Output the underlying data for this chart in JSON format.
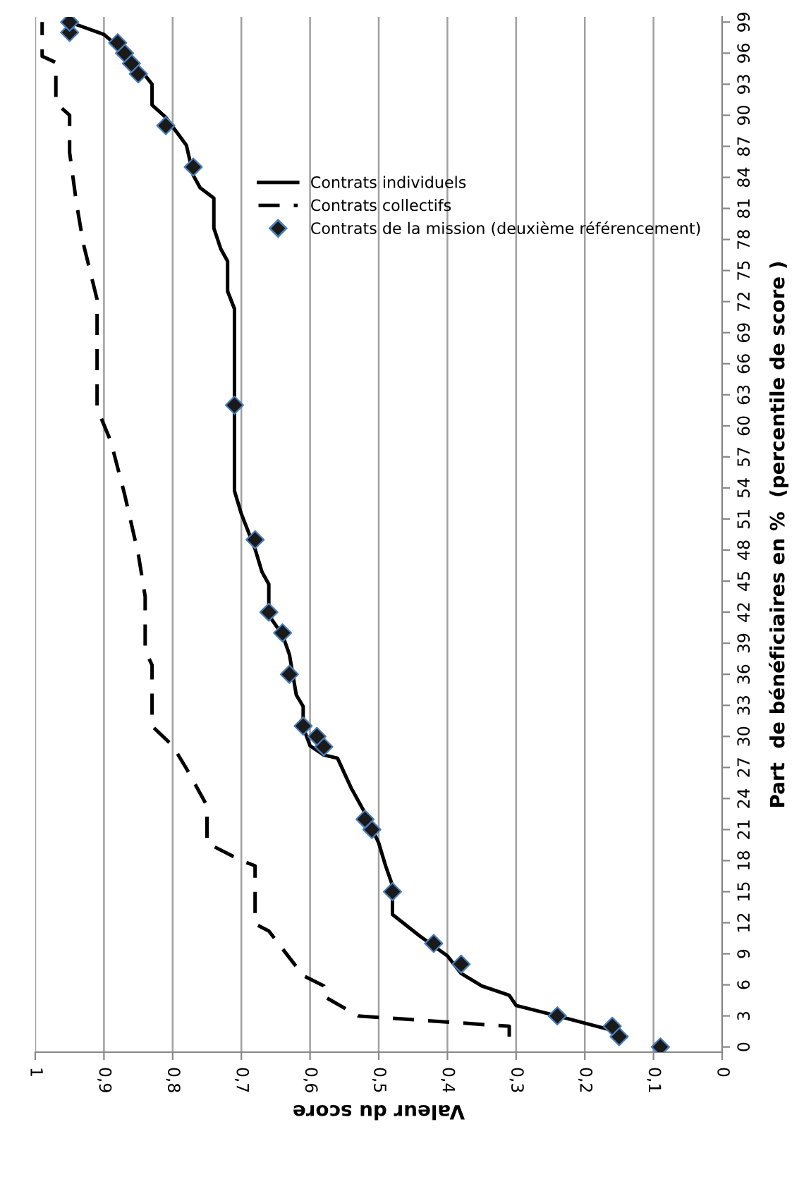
{
  "chart_data": {
    "type": "line",
    "xlabel": "Valeur du score",
    "ylabel": "Part  de bénéficiaires en %  (percentile de score )",
    "ylim": [
      -0.5,
      99.5
    ],
    "yticks": [
      0,
      3,
      6,
      9,
      12,
      15,
      18,
      21,
      24,
      27,
      30,
      33,
      36,
      39,
      42,
      45,
      48,
      51,
      54,
      57,
      60,
      63,
      66,
      69,
      72,
      75,
      78,
      81,
      84,
      87,
      90,
      93,
      96,
      99
    ],
    "xlim": [
      1,
      0
    ],
    "xticks": [
      {
        "value": 0,
        "label": "0"
      },
      {
        "value": 0.1,
        "label": "0,1"
      },
      {
        "value": 0.2,
        "label": "0,2"
      },
      {
        "value": 0.3,
        "label": "0,3"
      },
      {
        "value": 0.4,
        "label": "0,4"
      },
      {
        "value": 0.5,
        "label": "0,5"
      },
      {
        "value": 0.6,
        "label": "0,6"
      },
      {
        "value": 0.7,
        "label": "0,7"
      },
      {
        "value": 0.8,
        "label": "0,8"
      },
      {
        "value": 0.9,
        "label": "0,9"
      },
      {
        "value": 1,
        "label": "1"
      }
    ],
    "grid": "x",
    "legend": "top right",
    "series": [
      {
        "name": "Contrats individuels",
        "line_style": "solid",
        "color": "#000000",
        "values": [
          1,
          1.6,
          3,
          4,
          5,
          5.9,
          7.1,
          8.8,
          10.7,
          12.8,
          15.6,
          17.5,
          19.7,
          22.6,
          25,
          27.9,
          28.2,
          29.1,
          30.9,
          32.9,
          34,
          37.9,
          39.8,
          41.7,
          44.7,
          45.9,
          48.1,
          51.5,
          53.7,
          71.3,
          73,
          75.9,
          77.1,
          79.1,
          82,
          83,
          84.2,
          87.1,
          89.8,
          91,
          93,
          94.7,
          96.1,
          97.8,
          99
        ],
        "x": [
          0.14,
          0.16,
          0.24,
          0.3,
          0.31,
          0.35,
          0.38,
          0.4,
          0.44,
          0.48,
          0.48,
          0.49,
          0.5,
          0.52,
          0.54,
          0.56,
          0.58,
          0.6,
          0.61,
          0.61,
          0.62,
          0.63,
          0.64,
          0.66,
          0.66,
          0.67,
          0.68,
          0.7,
          0.71,
          0.71,
          0.72,
          0.72,
          0.73,
          0.74,
          0.74,
          0.76,
          0.77,
          0.78,
          0.81,
          0.83,
          0.83,
          0.85,
          0.87,
          0.9,
          0.95
        ]
      },
      {
        "name": "Contrats collectifs",
        "line_style": "dashed",
        "color": "#000000",
        "values": [
          1,
          2,
          3,
          4.9,
          5.9,
          6.9,
          11.2,
          11.9,
          17.5,
          18,
          19.7,
          23.3,
          26.9,
          29.1,
          31,
          36.9,
          38.3,
          43.5,
          47.6,
          53.4,
          58.5,
          61.7,
          72.2,
          77.6,
          81.5,
          86.4,
          90,
          91.2,
          95.1,
          95.7,
          99
        ],
        "x": [
          0.31,
          0.31,
          0.53,
          0.58,
          0.58,
          0.61,
          0.66,
          0.68,
          0.68,
          0.7,
          0.75,
          0.75,
          0.78,
          0.8,
          0.83,
          0.83,
          0.84,
          0.84,
          0.85,
          0.87,
          0.89,
          0.91,
          0.91,
          0.93,
          0.94,
          0.95,
          0.95,
          0.97,
          0.97,
          0.99,
          0.99
        ]
      },
      {
        "name": "Contrats de la mission (deuxième référencement)",
        "type": "scatter",
        "marker": "diamond",
        "color": "#1a1a1a",
        "values": [
          0,
          1,
          2,
          3,
          8,
          10,
          15,
          21,
          22,
          29,
          30,
          31,
          36,
          40,
          42,
          49,
          62,
          85,
          89,
          94,
          95,
          96,
          97,
          98,
          99
        ],
        "x": [
          0.09,
          0.15,
          0.16,
          0.24,
          0.38,
          0.42,
          0.48,
          0.51,
          0.52,
          0.58,
          0.59,
          0.61,
          0.63,
          0.64,
          0.66,
          0.68,
          0.71,
          0.77,
          0.81,
          0.85,
          0.86,
          0.87,
          0.88,
          0.95,
          0.95
        ]
      }
    ]
  }
}
